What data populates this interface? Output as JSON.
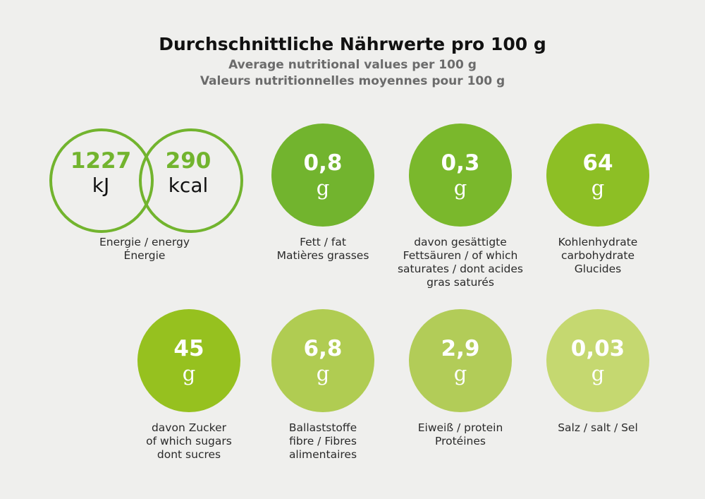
{
  "title": {
    "de": "Durchschnittliche Nährwerte pro 100 g",
    "en": "Average nutritional values per 100 g",
    "fr": "Valeurs nutritionnelles moyennes pour 100 g"
  },
  "energy": {
    "kj_value": "1227",
    "kj_unit": "kJ",
    "kcal_value": "290",
    "kcal_unit": "kcal",
    "label": [
      "Energie / energy",
      "Énergie"
    ],
    "color": "#72b42e"
  },
  "nutrients": [
    {
      "value": "0,8",
      "unit": "g",
      "label": [
        "Fett / fat",
        "Matières grasses"
      ],
      "color": "#72b42e"
    },
    {
      "value": "0,3",
      "unit": "g",
      "label": [
        "davon gesättigte",
        "Fettsäuren / of which",
        "saturates / dont acides",
        "gras saturés"
      ],
      "color": "#7ab82c"
    },
    {
      "value": "64",
      "unit": "g",
      "label": [
        "Kohlenhydrate",
        "carbohydrate",
        "Glucides"
      ],
      "color": "#8dbf25"
    },
    {
      "value": "45",
      "unit": "g",
      "label": [
        "davon Zucker",
        "of which sugars",
        "dont sucres"
      ],
      "color": "#96c11f"
    },
    {
      "value": "6,8",
      "unit": "g",
      "label": [
        "Ballaststoffe",
        "fibre / Fibres",
        "alimentaires"
      ],
      "color": "#b0cc52"
    },
    {
      "value": "2,9",
      "unit": "g",
      "label": [
        "Eiweiß / protein",
        "Protéines"
      ],
      "color": "#b2cc58"
    },
    {
      "value": "0,03",
      "unit": "g",
      "label": [
        "Salz / salt / Sel"
      ],
      "color": "#c5d870"
    }
  ]
}
